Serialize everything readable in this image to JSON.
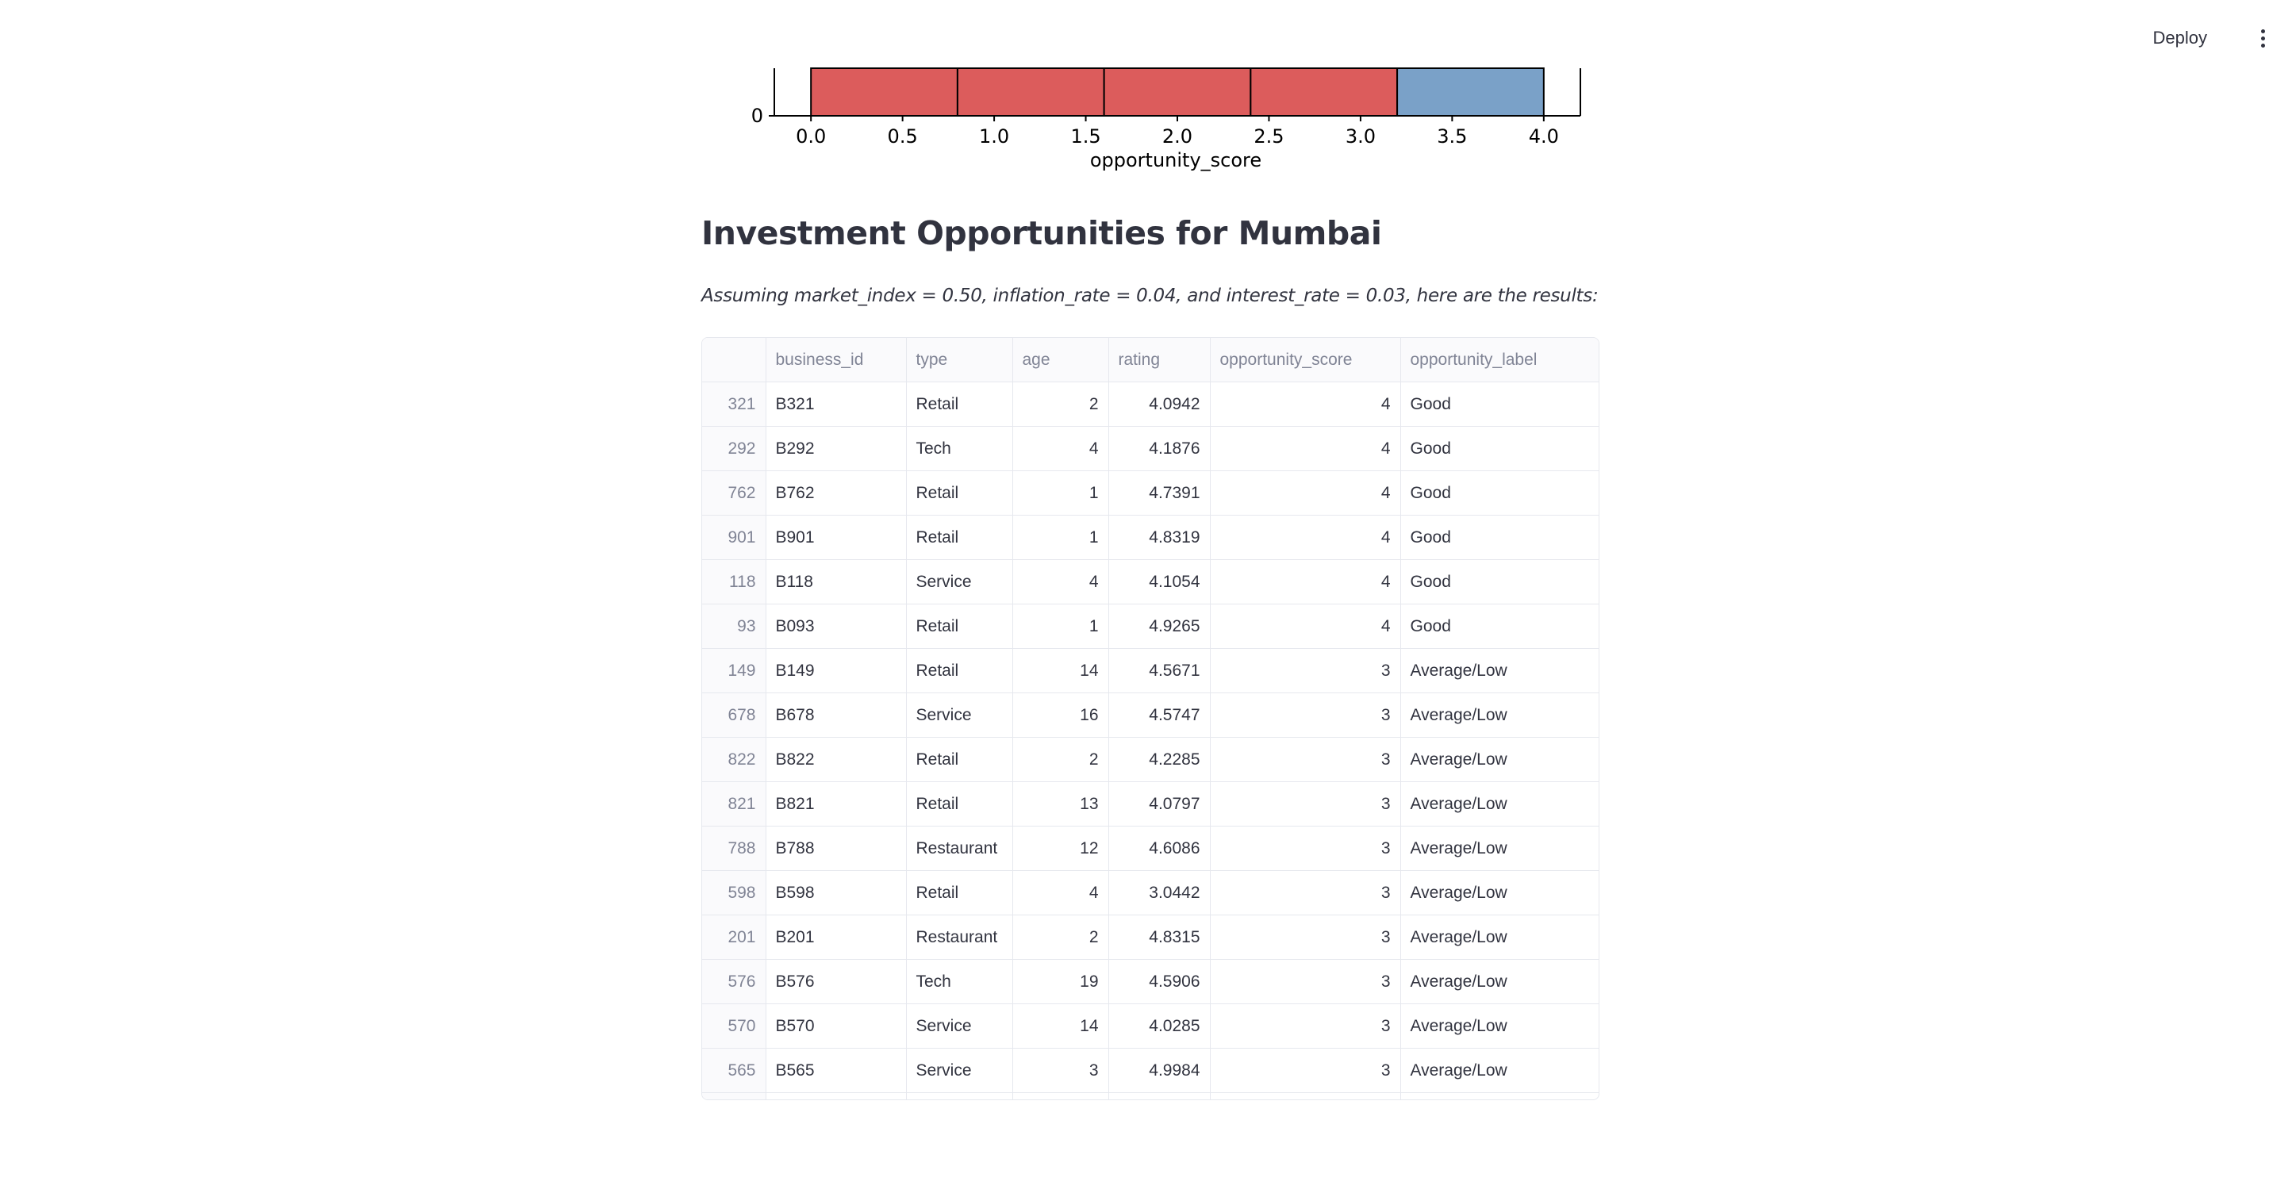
{
  "header": {
    "deploy_label": "Deploy",
    "menu_icon": "vertical-ellipsis-icon"
  },
  "chart_data": {
    "type": "bar",
    "xlabel": "opportunity_score",
    "x_ticks": [
      "0.0",
      "0.5",
      "1.0",
      "1.5",
      "2.0",
      "2.5",
      "3.0",
      "3.5",
      "4.0"
    ],
    "y_ticks": [
      "0"
    ],
    "xlim": [
      -0.2,
      4.2
    ],
    "bins": [
      {
        "x0": 0.0,
        "x1": 0.8,
        "color": "#dc5c5c"
      },
      {
        "x0": 0.8,
        "x1": 1.6,
        "color": "#dc5c5c"
      },
      {
        "x0": 1.6,
        "x1": 2.4,
        "color": "#dc5c5c"
      },
      {
        "x0": 2.4,
        "x1": 3.2,
        "color": "#dc5c5c"
      },
      {
        "x0": 3.2,
        "x1": 4.0,
        "color": "#7aa1c8"
      }
    ]
  },
  "section": {
    "title": "Investment Opportunities for Mumbai",
    "caption": "Assuming market_index = 0.50, inflation_rate = 0.04, and interest_rate = 0.03, here are the results:"
  },
  "table": {
    "columns": [
      "",
      "business_id",
      "type",
      "age",
      "rating",
      "opportunity_score",
      "opportunity_label"
    ],
    "rows": [
      [
        "321",
        "B321",
        "Retail",
        "2",
        "4.0942",
        "4",
        "Good"
      ],
      [
        "292",
        "B292",
        "Tech",
        "4",
        "4.1876",
        "4",
        "Good"
      ],
      [
        "762",
        "B762",
        "Retail",
        "1",
        "4.7391",
        "4",
        "Good"
      ],
      [
        "901",
        "B901",
        "Retail",
        "1",
        "4.8319",
        "4",
        "Good"
      ],
      [
        "118",
        "B118",
        "Service",
        "4",
        "4.1054",
        "4",
        "Good"
      ],
      [
        "93",
        "B093",
        "Retail",
        "1",
        "4.9265",
        "4",
        "Good"
      ],
      [
        "149",
        "B149",
        "Retail",
        "14",
        "4.5671",
        "3",
        "Average/Low"
      ],
      [
        "678",
        "B678",
        "Service",
        "16",
        "4.5747",
        "3",
        "Average/Low"
      ],
      [
        "822",
        "B822",
        "Retail",
        "2",
        "4.2285",
        "3",
        "Average/Low"
      ],
      [
        "821",
        "B821",
        "Retail",
        "13",
        "4.0797",
        "3",
        "Average/Low"
      ],
      [
        "788",
        "B788",
        "Restaurant",
        "12",
        "4.6086",
        "3",
        "Average/Low"
      ],
      [
        "598",
        "B598",
        "Retail",
        "4",
        "3.0442",
        "3",
        "Average/Low"
      ],
      [
        "201",
        "B201",
        "Restaurant",
        "2",
        "4.8315",
        "3",
        "Average/Low"
      ],
      [
        "576",
        "B576",
        "Tech",
        "19",
        "4.5906",
        "3",
        "Average/Low"
      ],
      [
        "570",
        "B570",
        "Service",
        "14",
        "4.0285",
        "3",
        "Average/Low"
      ],
      [
        "565",
        "B565",
        "Service",
        "3",
        "4.9984",
        "3",
        "Average/Low"
      ],
      [
        "",
        "",
        "",
        "",
        "",
        "",
        ""
      ]
    ]
  }
}
